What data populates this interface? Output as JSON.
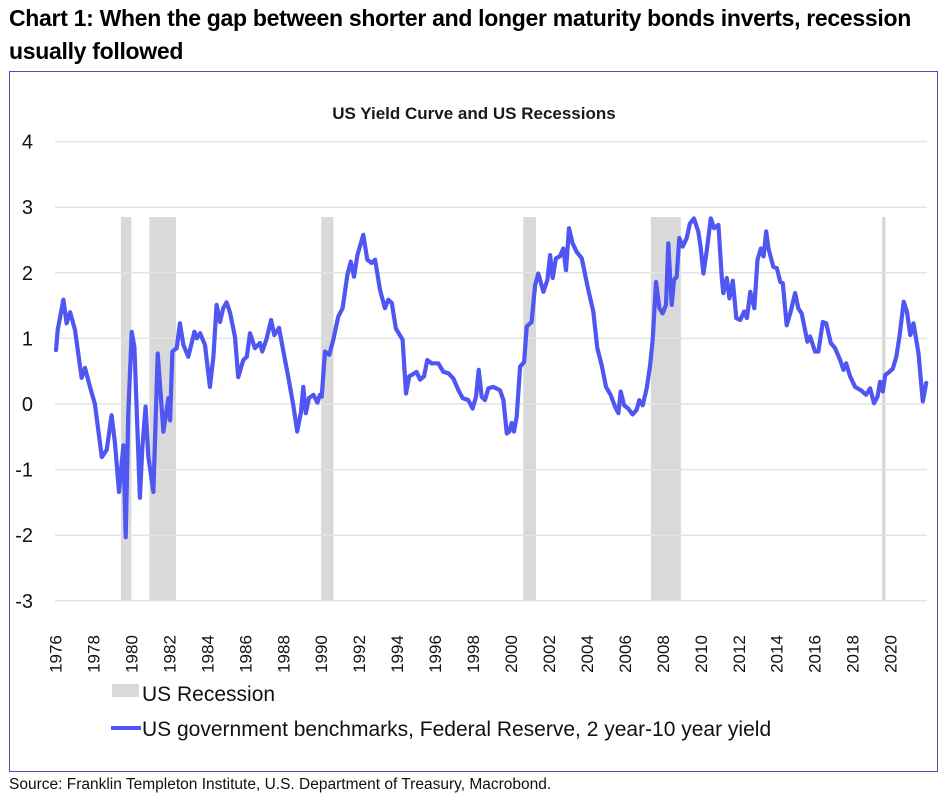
{
  "headline": "Chart 1: When the gap between shorter and longer maturity bonds inverts, recession usually followed",
  "source": "Source: Franklin Templeton Institute, U.S. Department of Treasury, Macrobond.",
  "colors": {
    "line": "#4f56f2",
    "recession": "#d9d9d9",
    "grid": "#e3e3e3",
    "frame": "#4b4bc8"
  },
  "chart_data": {
    "type": "line",
    "title": "US Yield Curve and US Recessions",
    "xlabel": "",
    "ylabel": "",
    "xlim": [
      1976,
      2022.5
    ],
    "ylim": [
      -3,
      4
    ],
    "grid": true,
    "legend_position": "bottom-left",
    "y_ticks": [
      "4",
      "3",
      "2",
      "1",
      "0",
      "-1",
      "-2",
      "-3"
    ],
    "y_tick_values": [
      4,
      3,
      2,
      1,
      0,
      -1,
      -2,
      -3
    ],
    "x_ticks": [
      "1976",
      "1978",
      "1980",
      "1982",
      "1984",
      "1986",
      "1988",
      "1990",
      "1992",
      "1994",
      "1996",
      "1998",
      "2000",
      "2002",
      "2004",
      "2006",
      "2008",
      "2010",
      "2012",
      "2014",
      "2016",
      "2018",
      "2020"
    ],
    "x_tick_values": [
      1976.5,
      1978.5,
      1980.5,
      1982.5,
      1984.5,
      1986.5,
      1988.5,
      1990.5,
      1992.5,
      1994.5,
      1996.5,
      1998.5,
      2000.5,
      2002.5,
      2004.5,
      2006.5,
      2008.5,
      2010.5,
      2012.5,
      2014.5,
      2016.5,
      2018.5,
      2020.5
    ],
    "legend": [
      {
        "type": "area",
        "label": "US Recession"
      },
      {
        "type": "line",
        "label": "US government benchmarks, Federal Reserve, 2 year-10 year yield"
      }
    ],
    "recessions": {
      "name": "US Recession",
      "bar_top_value": 2.85,
      "periods": [
        [
          1980.0,
          1980.55
        ],
        [
          1981.5,
          1982.9
        ],
        [
          1990.55,
          1991.2
        ],
        [
          2001.2,
          2001.87
        ],
        [
          2007.92,
          2009.5
        ],
        [
          2020.1,
          2020.28
        ]
      ]
    },
    "series": [
      {
        "name": "US government benchmarks, Federal Reserve, 2 year-10 year yield",
        "x": [
          1976.58,
          1976.67,
          1976.97,
          1977.14,
          1977.32,
          1977.58,
          1977.93,
          1978.11,
          1978.37,
          1978.63,
          1978.99,
          1979.25,
          1979.51,
          1979.69,
          1979.9,
          1980.13,
          1980.25,
          1980.39,
          1980.57,
          1980.71,
          1981.0,
          1981.13,
          1981.3,
          1981.44,
          1981.71,
          1981.94,
          1982.24,
          1982.5,
          1982.59,
          1982.71,
          1982.94,
          1983.11,
          1983.29,
          1983.55,
          1983.87,
          1984.0,
          1984.17,
          1984.43,
          1984.69,
          1984.87,
          1985.04,
          1985.22,
          1985.39,
          1985.57,
          1985.75,
          1986.01,
          1986.18,
          1986.45,
          1986.63,
          1986.8,
          1987.06,
          1987.33,
          1987.45,
          1987.68,
          1987.91,
          1988.08,
          1988.33,
          1988.56,
          1988.82,
          1989.08,
          1989.29,
          1989.49,
          1989.61,
          1989.74,
          1989.91,
          1990.14,
          1990.35,
          1990.49,
          1990.58,
          1990.75,
          1990.98,
          1991.19,
          1991.45,
          1991.68,
          1991.93,
          1992.11,
          1992.28,
          1992.46,
          1992.77,
          1992.98,
          1993.21,
          1993.39,
          1993.65,
          1993.91,
          1994.09,
          1994.27,
          1994.49,
          1994.84,
          1995.02,
          1995.19,
          1995.58,
          1995.76,
          1995.97,
          1996.14,
          1996.37,
          1996.72,
          1996.99,
          1997.25,
          1997.51,
          1997.78,
          1998.01,
          1998.3,
          1998.53,
          1998.71,
          1998.85,
          1999.01,
          1999.18,
          1999.36,
          1999.62,
          1999.97,
          2000.15,
          2000.33,
          2000.46,
          2000.59,
          2000.71,
          2000.85,
          2001.03,
          2001.24,
          2001.38,
          2001.64,
          2001.82,
          2001.99,
          2002.26,
          2002.47,
          2002.61,
          2002.75,
          2002.92,
          2003.13,
          2003.31,
          2003.45,
          2003.61,
          2003.8,
          2004.01,
          2004.28,
          2004.57,
          2004.89,
          2005.1,
          2005.33,
          2005.56,
          2005.8,
          2006.03,
          2006.21,
          2006.33,
          2006.51,
          2006.73,
          2006.96,
          2007.17,
          2007.31,
          2007.49,
          2007.7,
          2007.88,
          2008.02,
          2008.19,
          2008.37,
          2008.54,
          2008.72,
          2008.84,
          2009.02,
          2009.14,
          2009.28,
          2009.42,
          2009.6,
          2009.81,
          2009.98,
          2010.19,
          2010.42,
          2010.55,
          2010.69,
          2010.86,
          2011.08,
          2011.25,
          2011.48,
          2011.66,
          2011.74,
          2011.92,
          2012.06,
          2012.24,
          2012.42,
          2012.63,
          2012.84,
          2012.98,
          2013.16,
          2013.37,
          2013.54,
          2013.72,
          2013.86,
          2014.0,
          2014.12,
          2014.37,
          2014.56,
          2014.74,
          2014.87,
          2015.08,
          2015.29,
          2015.52,
          2015.69,
          2015.87,
          2016.17,
          2016.31,
          2016.57,
          2016.75,
          2016.98,
          2017.16,
          2017.4,
          2017.63,
          2017.89,
          2018.07,
          2018.21,
          2018.42,
          2018.68,
          2018.98,
          2019.26,
          2019.47,
          2019.68,
          2019.86,
          2020.0,
          2020.14,
          2020.27,
          2020.49,
          2020.67,
          2020.85,
          2021.02,
          2021.24,
          2021.41,
          2021.59,
          2021.76,
          2022.02,
          2022.25,
          2022.43
        ],
        "values": [
          0.82,
          1.13,
          1.59,
          1.23,
          1.4,
          1.13,
          0.4,
          0.55,
          0.26,
          0.0,
          -0.81,
          -0.7,
          -0.17,
          -0.6,
          -1.34,
          -0.63,
          -2.03,
          -0.14,
          1.1,
          0.87,
          -1.43,
          -0.65,
          -0.04,
          -0.8,
          -1.34,
          0.77,
          -0.42,
          0.09,
          -0.25,
          0.8,
          0.85,
          1.23,
          0.9,
          0.72,
          1.1,
          1.0,
          1.08,
          0.9,
          0.26,
          0.72,
          1.51,
          1.25,
          1.46,
          1.55,
          1.39,
          1.02,
          0.41,
          0.67,
          0.72,
          1.08,
          0.85,
          0.93,
          0.8,
          1.0,
          1.28,
          1.05,
          1.16,
          0.8,
          0.41,
          -0.02,
          -0.42,
          -0.12,
          0.26,
          -0.14,
          0.09,
          0.14,
          0.02,
          0.14,
          0.11,
          0.8,
          0.75,
          0.98,
          1.33,
          1.46,
          1.97,
          2.17,
          1.94,
          2.27,
          2.58,
          2.2,
          2.15,
          2.2,
          1.74,
          1.46,
          1.59,
          1.54,
          1.15,
          0.98,
          0.16,
          0.42,
          0.49,
          0.37,
          0.42,
          0.67,
          0.62,
          0.62,
          0.49,
          0.47,
          0.39,
          0.21,
          0.09,
          0.06,
          -0.07,
          0.11,
          0.52,
          0.11,
          0.06,
          0.24,
          0.26,
          0.21,
          0.06,
          -0.45,
          -0.42,
          -0.29,
          -0.42,
          -0.19,
          0.57,
          0.64,
          1.18,
          1.25,
          1.81,
          1.99,
          1.71,
          1.89,
          2.27,
          1.92,
          2.22,
          2.25,
          2.37,
          2.04,
          2.68,
          2.45,
          2.32,
          2.22,
          1.81,
          1.41,
          0.85,
          0.59,
          0.26,
          0.14,
          -0.04,
          -0.14,
          0.19,
          -0.02,
          -0.07,
          -0.16,
          -0.09,
          0.06,
          -0.02,
          0.24,
          0.59,
          0.98,
          1.86,
          1.46,
          1.38,
          1.51,
          2.45,
          1.51,
          1.89,
          1.94,
          2.53,
          2.4,
          2.53,
          2.75,
          2.83,
          2.63,
          2.37,
          1.99,
          2.32,
          2.83,
          2.68,
          2.73,
          1.92,
          1.69,
          1.92,
          1.61,
          1.88,
          1.31,
          1.28,
          1.41,
          1.31,
          1.71,
          1.46,
          2.2,
          2.37,
          2.25,
          2.63,
          2.37,
          2.09,
          2.07,
          1.86,
          1.84,
          1.2,
          1.41,
          1.69,
          1.46,
          1.38,
          0.95,
          1.03,
          0.8,
          0.8,
          1.25,
          1.23,
          0.93,
          0.85,
          0.67,
          0.52,
          0.62,
          0.42,
          0.26,
          0.21,
          0.14,
          0.24,
          0.01,
          0.11,
          0.34,
          0.19,
          0.44,
          0.49,
          0.54,
          0.72,
          1.03,
          1.56,
          1.41,
          1.05,
          1.23,
          0.77,
          0.04,
          0.32
        ]
      }
    ]
  }
}
